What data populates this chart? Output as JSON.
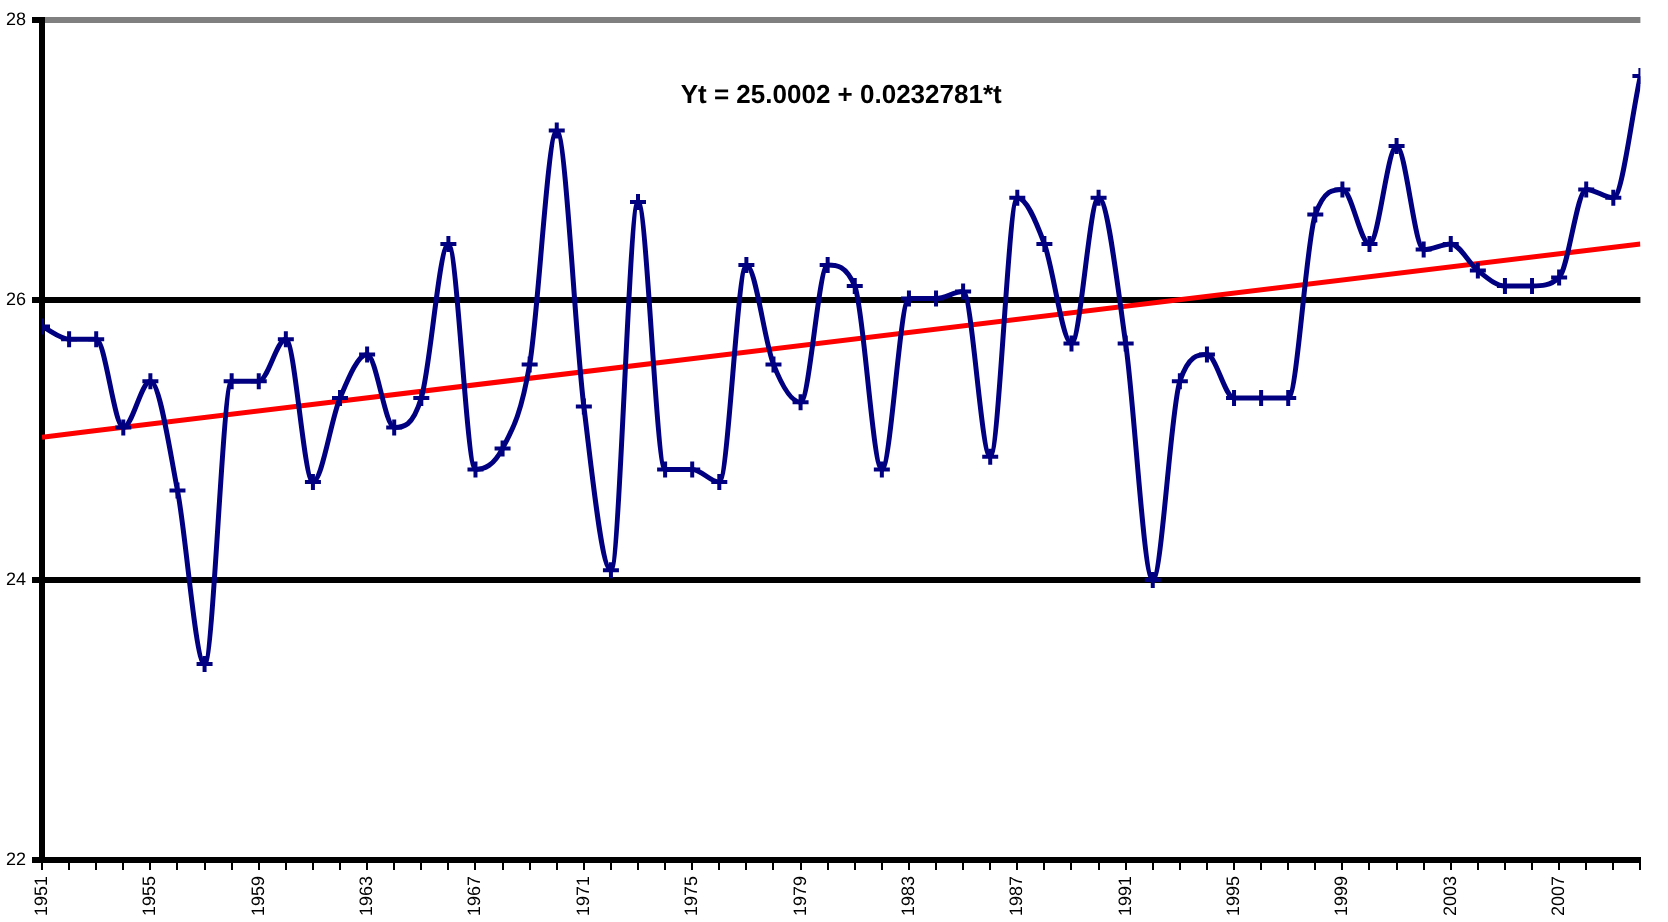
{
  "chart_data": {
    "type": "line",
    "x": [
      1951,
      1952,
      1953,
      1954,
      1955,
      1956,
      1957,
      1958,
      1959,
      1960,
      1961,
      1962,
      1963,
      1964,
      1965,
      1966,
      1967,
      1968,
      1969,
      1970,
      1971,
      1972,
      1973,
      1974,
      1975,
      1976,
      1977,
      1978,
      1979,
      1980,
      1981,
      1982,
      1983,
      1984,
      1985,
      1986,
      1987,
      1988,
      1989,
      1990,
      1991,
      1992,
      1993,
      1994,
      1995,
      1996,
      1997,
      1998,
      1999,
      2000,
      2001,
      2002,
      2003,
      2004,
      2005,
      2006,
      2007,
      2008,
      2009,
      2010
    ],
    "series": [
      {
        "color": "#000080",
        "marker": "cross",
        "values": [
          25.81,
          25.72,
          25.72,
          25.09,
          25.42,
          24.64,
          23.4,
          25.42,
          25.42,
          25.72,
          24.7,
          25.3,
          25.61,
          25.09,
          25.3,
          26.4,
          24.79,
          24.94,
          25.54,
          27.21,
          25.24,
          24.07,
          26.7,
          24.79,
          24.79,
          24.7,
          26.25,
          25.54,
          25.27,
          26.25,
          26.1,
          24.79,
          26.01,
          26.01,
          26.06,
          24.88,
          26.73,
          26.4,
          25.69,
          26.73,
          25.69,
          24.0,
          25.42,
          25.61,
          25.3,
          25.3,
          25.3,
          26.61,
          26.79,
          26.4,
          27.1,
          26.36,
          26.4,
          26.21,
          26.1,
          26.1,
          26.16,
          26.79,
          26.73,
          27.6
        ]
      },
      {
        "type": "line",
        "color": "#ff0000",
        "marker": "none",
        "x": [
          1951,
          2010
        ],
        "values": [
          25.02,
          26.4
        ]
      }
    ],
    "xlim": [
      1951,
      2010
    ],
    "ylim": [
      22,
      28
    ],
    "yticks": [
      22,
      24,
      26,
      28
    ],
    "xticks": [
      1951,
      {
        "value": 1952,
        "label": null
      },
      {
        "value": 1953,
        "label": null
      },
      {
        "value": 1954,
        "label": null
      },
      1955,
      {
        "value": 1956,
        "label": null
      },
      {
        "value": 1957,
        "label": null
      },
      {
        "value": 1958,
        "label": null
      },
      1959,
      {
        "value": 1960,
        "label": null
      },
      {
        "value": 1961,
        "label": null
      },
      {
        "value": 1962,
        "label": null
      },
      1963,
      {
        "value": 1964,
        "label": null
      },
      {
        "value": 1965,
        "label": null
      },
      {
        "value": 1966,
        "label": null
      },
      1967,
      {
        "value": 1968,
        "label": null
      },
      {
        "value": 1969,
        "label": null
      },
      {
        "value": 1970,
        "label": null
      },
      1971,
      {
        "value": 1972,
        "label": null
      },
      {
        "value": 1973,
        "label": null
      },
      {
        "value": 1974,
        "label": null
      },
      1975,
      {
        "value": 1976,
        "label": null
      },
      {
        "value": 1977,
        "label": null
      },
      {
        "value": 1978,
        "label": null
      },
      1979,
      {
        "value": 1980,
        "label": null
      },
      {
        "value": 1981,
        "label": null
      },
      {
        "value": 1982,
        "label": null
      },
      1983,
      {
        "value": 1984,
        "label": null
      },
      {
        "value": 1985,
        "label": null
      },
      {
        "value": 1986,
        "label": null
      },
      1987,
      {
        "value": 1988,
        "label": null
      },
      {
        "value": 1989,
        "label": null
      },
      {
        "value": 1990,
        "label": null
      },
      1991,
      {
        "value": 1992,
        "label": null
      },
      {
        "value": 1993,
        "label": null
      },
      {
        "value": 1994,
        "label": null
      },
      1995,
      {
        "value": 1996,
        "label": null
      },
      {
        "value": 1997,
        "label": null
      },
      {
        "value": 1998,
        "label": null
      },
      1999,
      {
        "value": 2000,
        "label": null
      },
      {
        "value": 2001,
        "label": null
      },
      {
        "value": 2002,
        "label": null
      },
      2003,
      {
        "value": 2004,
        "label": null
      },
      {
        "value": 2005,
        "label": null
      },
      {
        "value": 2006,
        "label": null
      },
      2007,
      {
        "value": 2008,
        "label": null
      },
      {
        "value": 2009,
        "label": null
      },
      {
        "value": 2010,
        "label": null
      }
    ],
    "grid": "y",
    "legend": false,
    "line_style": "solid",
    "annotations": [
      "Yt = 25.0002 + 0.0232781*t"
    ]
  }
}
